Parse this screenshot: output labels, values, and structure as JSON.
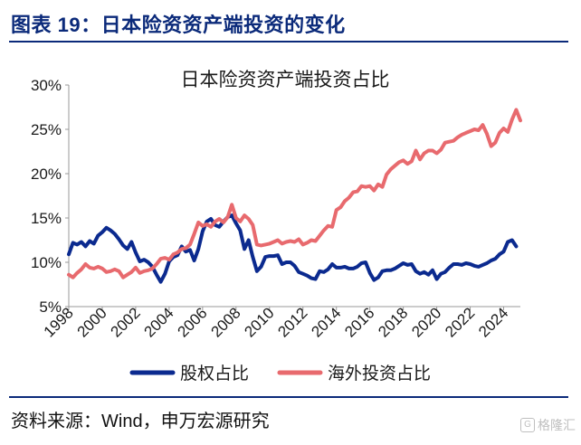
{
  "figure_title": "图表 19：日本险资资产端投资的变化",
  "source_note": "资料来源：Wind，申万宏源研究",
  "watermark": {
    "icon": "G",
    "text": "格隆汇"
  },
  "chart_data": {
    "type": "line",
    "title": "日本险资资产端投资占比",
    "xlabel": "",
    "ylabel": "",
    "xlim": [
      1998,
      2025
    ],
    "ylim": [
      5,
      30
    ],
    "y_ticks": [
      "5%",
      "10%",
      "15%",
      "20%",
      "25%",
      "30%"
    ],
    "y_tick_values": [
      5,
      10,
      15,
      20,
      25,
      30
    ],
    "x_ticks": [
      "1998",
      "2000",
      "2002",
      "2004",
      "2006",
      "2008",
      "2010",
      "2012",
      "2014",
      "2016",
      "2018",
      "2020",
      "2022",
      "2024"
    ],
    "x_tick_values": [
      1998,
      2000,
      2002,
      2004,
      2006,
      2008,
      2010,
      2012,
      2014,
      2016,
      2018,
      2020,
      2022,
      2024
    ],
    "legend_position": "bottom",
    "series": [
      {
        "name": "股权占比",
        "color": "#0b2a8f",
        "points": [
          [
            1998.0,
            10.9
          ],
          [
            1998.25,
            12.2
          ],
          [
            1998.5,
            12.0
          ],
          [
            1998.75,
            12.3
          ],
          [
            1999.0,
            11.8
          ],
          [
            1999.25,
            12.4
          ],
          [
            1999.5,
            12.1
          ],
          [
            1999.75,
            13.0
          ],
          [
            2000.0,
            13.4
          ],
          [
            2000.25,
            13.9
          ],
          [
            2000.5,
            13.6
          ],
          [
            2000.75,
            13.2
          ],
          [
            2001.0,
            12.6
          ],
          [
            2001.25,
            11.9
          ],
          [
            2001.5,
            11.5
          ],
          [
            2001.75,
            12.3
          ],
          [
            2002.0,
            11.1
          ],
          [
            2002.25,
            10.1
          ],
          [
            2002.5,
            10.3
          ],
          [
            2002.75,
            10.0
          ],
          [
            2003.0,
            9.5
          ],
          [
            2003.25,
            8.6
          ],
          [
            2003.5,
            7.8
          ],
          [
            2003.75,
            8.7
          ],
          [
            2004.0,
            10.1
          ],
          [
            2004.25,
            10.6
          ],
          [
            2004.5,
            10.8
          ],
          [
            2004.75,
            11.8
          ],
          [
            2005.0,
            11.2
          ],
          [
            2005.25,
            11.4
          ],
          [
            2005.5,
            10.2
          ],
          [
            2005.75,
            11.5
          ],
          [
            2006.0,
            13.5
          ],
          [
            2006.25,
            14.6
          ],
          [
            2006.5,
            14.9
          ],
          [
            2006.75,
            14.2
          ],
          [
            2007.0,
            14.0
          ],
          [
            2007.25,
            14.6
          ],
          [
            2007.5,
            15.1
          ],
          [
            2007.75,
            15.3
          ],
          [
            2008.0,
            14.4
          ],
          [
            2008.25,
            13.6
          ],
          [
            2008.5,
            11.5
          ],
          [
            2008.75,
            12.5
          ],
          [
            2009.0,
            10.6
          ],
          [
            2009.25,
            9.0
          ],
          [
            2009.5,
            9.5
          ],
          [
            2009.75,
            10.6
          ],
          [
            2010.0,
            10.7
          ],
          [
            2010.25,
            10.7
          ],
          [
            2010.5,
            10.8
          ],
          [
            2010.75,
            9.8
          ],
          [
            2011.0,
            10.0
          ],
          [
            2011.25,
            10.0
          ],
          [
            2011.5,
            9.6
          ],
          [
            2011.75,
            8.9
          ],
          [
            2012.0,
            8.7
          ],
          [
            2012.25,
            8.5
          ],
          [
            2012.5,
            8.2
          ],
          [
            2012.75,
            8.1
          ],
          [
            2013.0,
            9.0
          ],
          [
            2013.25,
            8.9
          ],
          [
            2013.5,
            9.2
          ],
          [
            2013.75,
            9.8
          ],
          [
            2014.0,
            9.4
          ],
          [
            2014.25,
            9.4
          ],
          [
            2014.5,
            9.5
          ],
          [
            2014.75,
            9.3
          ],
          [
            2015.0,
            9.3
          ],
          [
            2015.25,
            9.5
          ],
          [
            2015.5,
            9.9
          ],
          [
            2015.75,
            10.0
          ],
          [
            2016.0,
            8.8
          ],
          [
            2016.25,
            8.0
          ],
          [
            2016.5,
            8.3
          ],
          [
            2016.75,
            9.0
          ],
          [
            2017.0,
            9.1
          ],
          [
            2017.25,
            9.1
          ],
          [
            2017.5,
            9.3
          ],
          [
            2017.75,
            9.6
          ],
          [
            2018.0,
            9.9
          ],
          [
            2018.25,
            9.7
          ],
          [
            2018.5,
            9.8
          ],
          [
            2018.75,
            9.0
          ],
          [
            2019.0,
            8.7
          ],
          [
            2019.25,
            8.9
          ],
          [
            2019.5,
            8.6
          ],
          [
            2019.75,
            9.1
          ],
          [
            2020.0,
            8.1
          ],
          [
            2020.25,
            8.7
          ],
          [
            2020.5,
            8.9
          ],
          [
            2020.75,
            9.4
          ],
          [
            2021.0,
            9.8
          ],
          [
            2021.25,
            9.8
          ],
          [
            2021.5,
            9.7
          ],
          [
            2021.75,
            9.9
          ],
          [
            2022.0,
            9.8
          ],
          [
            2022.25,
            9.6
          ],
          [
            2022.5,
            9.5
          ],
          [
            2022.75,
            9.7
          ],
          [
            2023.0,
            9.9
          ],
          [
            2023.25,
            10.2
          ],
          [
            2023.5,
            10.4
          ],
          [
            2023.75,
            10.9
          ],
          [
            2024.0,
            11.2
          ],
          [
            2024.25,
            12.3
          ],
          [
            2024.5,
            12.5
          ],
          [
            2024.75,
            11.8
          ]
        ]
      },
      {
        "name": "海外投资占比",
        "color": "#e86a6e",
        "points": [
          [
            1998.0,
            8.6
          ],
          [
            1998.25,
            8.3
          ],
          [
            1998.5,
            8.8
          ],
          [
            1998.75,
            9.2
          ],
          [
            1999.0,
            9.8
          ],
          [
            1999.25,
            9.4
          ],
          [
            1999.5,
            9.3
          ],
          [
            1999.75,
            9.5
          ],
          [
            2000.0,
            9.3
          ],
          [
            2000.25,
            8.9
          ],
          [
            2000.5,
            9.0
          ],
          [
            2000.75,
            9.2
          ],
          [
            2001.0,
            9.0
          ],
          [
            2001.25,
            8.3
          ],
          [
            2001.5,
            8.6
          ],
          [
            2001.75,
            8.9
          ],
          [
            2002.0,
            9.4
          ],
          [
            2002.25,
            8.8
          ],
          [
            2002.5,
            9.0
          ],
          [
            2002.75,
            9.1
          ],
          [
            2003.0,
            9.3
          ],
          [
            2003.25,
            9.8
          ],
          [
            2003.5,
            10.4
          ],
          [
            2003.75,
            10.5
          ],
          [
            2004.0,
            10.3
          ],
          [
            2004.25,
            10.9
          ],
          [
            2004.5,
            11.1
          ],
          [
            2004.75,
            11.5
          ],
          [
            2005.0,
            11.6
          ],
          [
            2005.25,
            12.0
          ],
          [
            2005.5,
            13.2
          ],
          [
            2005.75,
            14.5
          ],
          [
            2006.0,
            14.1
          ],
          [
            2006.25,
            14.3
          ],
          [
            2006.5,
            14.0
          ],
          [
            2006.75,
            14.6
          ],
          [
            2007.0,
            14.9
          ],
          [
            2007.25,
            14.5
          ],
          [
            2007.5,
            15.1
          ],
          [
            2007.75,
            16.5
          ],
          [
            2008.0,
            15.0
          ],
          [
            2008.25,
            14.6
          ],
          [
            2008.5,
            15.3
          ],
          [
            2008.75,
            14.9
          ],
          [
            2009.0,
            14.2
          ],
          [
            2009.25,
            12.0
          ],
          [
            2009.5,
            11.9
          ],
          [
            2009.75,
            12.0
          ],
          [
            2010.0,
            12.1
          ],
          [
            2010.25,
            12.3
          ],
          [
            2010.5,
            12.5
          ],
          [
            2010.75,
            12.1
          ],
          [
            2011.0,
            12.3
          ],
          [
            2011.25,
            12.4
          ],
          [
            2011.5,
            12.3
          ],
          [
            2011.75,
            12.6
          ],
          [
            2012.0,
            12.0
          ],
          [
            2012.25,
            12.2
          ],
          [
            2012.5,
            12.5
          ],
          [
            2012.75,
            12.4
          ],
          [
            2013.0,
            13.0
          ],
          [
            2013.25,
            13.6
          ],
          [
            2013.5,
            14.1
          ],
          [
            2013.75,
            14.0
          ],
          [
            2014.0,
            15.9
          ],
          [
            2014.25,
            16.2
          ],
          [
            2014.5,
            16.9
          ],
          [
            2014.75,
            17.3
          ],
          [
            2015.0,
            17.9
          ],
          [
            2015.25,
            18.0
          ],
          [
            2015.5,
            18.6
          ],
          [
            2015.75,
            18.5
          ],
          [
            2016.0,
            18.6
          ],
          [
            2016.25,
            18.1
          ],
          [
            2016.5,
            18.8
          ],
          [
            2016.75,
            18.5
          ],
          [
            2017.0,
            19.9
          ],
          [
            2017.25,
            20.5
          ],
          [
            2017.5,
            20.9
          ],
          [
            2017.75,
            21.3
          ],
          [
            2018.0,
            21.5
          ],
          [
            2018.25,
            21.1
          ],
          [
            2018.5,
            21.4
          ],
          [
            2018.75,
            22.6
          ],
          [
            2019.0,
            21.6
          ],
          [
            2019.25,
            22.3
          ],
          [
            2019.5,
            22.6
          ],
          [
            2019.75,
            22.6
          ],
          [
            2020.0,
            22.3
          ],
          [
            2020.25,
            22.7
          ],
          [
            2020.5,
            23.5
          ],
          [
            2020.75,
            23.6
          ],
          [
            2021.0,
            23.7
          ],
          [
            2021.25,
            24.1
          ],
          [
            2021.5,
            24.4
          ],
          [
            2021.75,
            24.6
          ],
          [
            2022.0,
            24.8
          ],
          [
            2022.25,
            25.0
          ],
          [
            2022.5,
            24.9
          ],
          [
            2022.75,
            25.5
          ],
          [
            2023.0,
            24.5
          ],
          [
            2023.25,
            23.1
          ],
          [
            2023.5,
            23.5
          ],
          [
            2023.75,
            24.6
          ],
          [
            2024.0,
            25.1
          ],
          [
            2024.25,
            24.7
          ],
          [
            2024.5,
            26.1
          ],
          [
            2024.75,
            27.2
          ],
          [
            2025.0,
            26.0
          ]
        ]
      }
    ]
  }
}
